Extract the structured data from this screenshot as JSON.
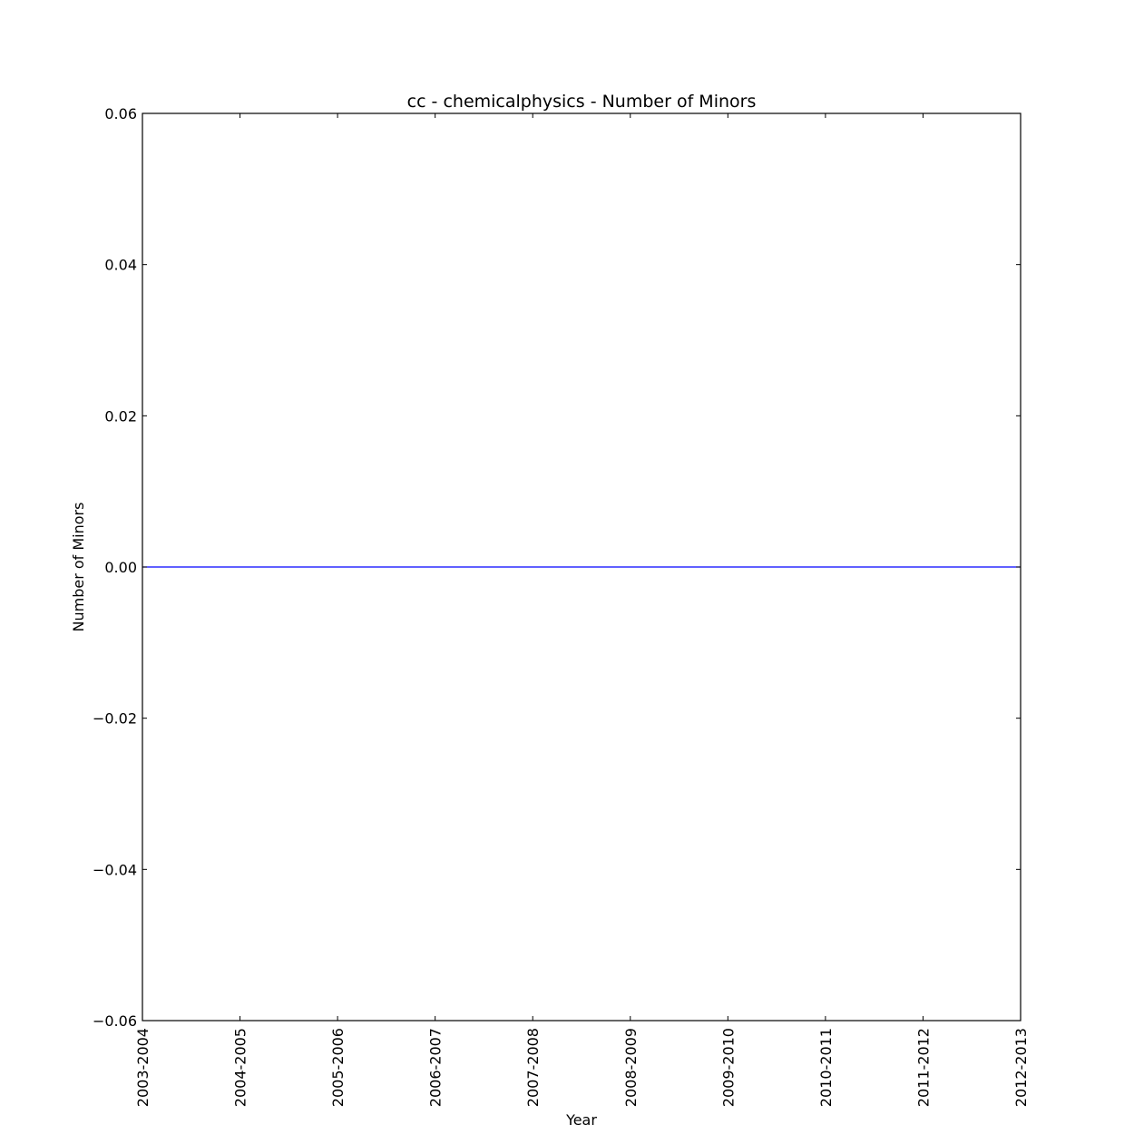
{
  "chart_data": {
    "type": "line",
    "title": "cc - chemicalphysics - Number of Minors",
    "xlabel": "Year",
    "ylabel": "Number of Minors",
    "categories": [
      "2003-2004",
      "2004-2005",
      "2005-2006",
      "2006-2007",
      "2007-2008",
      "2008-2009",
      "2009-2010",
      "2010-2011",
      "2011-2012",
      "2012-2013"
    ],
    "series": [
      {
        "name": "Number of Minors",
        "values": [
          0,
          0,
          0,
          0,
          0,
          0,
          0,
          0,
          0,
          0
        ]
      }
    ],
    "ylim": [
      -0.06,
      0.06
    ],
    "yticks": [
      -0.06,
      -0.04,
      -0.02,
      0.0,
      0.02,
      0.04,
      0.06
    ],
    "ytick_labels": [
      "−0.06",
      "−0.04",
      "−0.02",
      "0.00",
      "0.02",
      "0.04",
      "0.06"
    ],
    "grid": false,
    "colors": {
      "line": "#0000ff",
      "axes": "#000000"
    }
  }
}
